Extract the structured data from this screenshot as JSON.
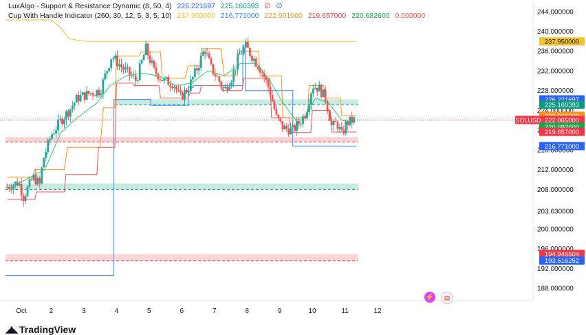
{
  "legend": {
    "line1": {
      "name": "LuxAlgo - Support & Resistance Dynamic (8, 50, 4)",
      "v1": "226.221697",
      "v2": "225.160393",
      "v3": "∅",
      "v4": "∅"
    },
    "line2": {
      "name": "Cup With Handle Indicator (260, 30, 12, 5, 3, 5, 10)",
      "v1": "237.950000",
      "v2": "216.771000",
      "v3": "222.901000",
      "v4": "219.657000",
      "v5": "220.682600",
      "v6": "0.000000"
    }
  },
  "brand": {
    "logo_text": "TradingView",
    "logo_mark": "◢◣"
  },
  "icons": [
    "flash-icon",
    "us-flag-icon"
  ],
  "colors": {
    "up": "#26a69a",
    "down": "#ef5350",
    "ma": "#2ec86b",
    "yellow": "#f2c230",
    "blue": "#2f8cff",
    "orange": "#f7931a",
    "red": "#f0524f",
    "green": "#16a34a"
  },
  "chart_data": {
    "type": "candlestick",
    "symbol": "SOLUSD",
    "x_ticks": [
      "Oct",
      "2",
      "3",
      "4",
      "5",
      "6",
      "7",
      "8",
      "9",
      "10",
      "11",
      "12"
    ],
    "y_ticks": [
      188.0,
      192.0,
      196.0,
      200.0,
      203.63,
      208.0,
      212.0,
      216.0,
      220.0,
      224.0,
      228.0,
      232.0,
      236.0,
      240.0,
      244.0
    ],
    "y_tick_labels": [
      "188.000000",
      "192.000000",
      "196.000000",
      "200.000000",
      "203.630000",
      "208.000000",
      "212.000000",
      "216.000000",
      "220.000000",
      "224.000000",
      "228.000000",
      "232.000000",
      "236.000000",
      "240.000000",
      "244.000000"
    ],
    "ylim": [
      185.5,
      245.5
    ],
    "xlim": [
      -0.4,
      12.6
    ],
    "price_tags": [
      {
        "label": "226.221697",
        "value": 226.221697,
        "color": "#2962ff"
      },
      {
        "label": "225.160393",
        "value": 225.160393,
        "color": "#089981"
      },
      {
        "label": "222.901000",
        "value": 222.901,
        "color": "#f7931a"
      },
      {
        "label": "222.065000",
        "value": 222.065,
        "color": "#f23645",
        "symbol": "SOLUSD"
      },
      {
        "label": "220.682600",
        "value": 220.6826,
        "color": "#16a34a"
      },
      {
        "label": "219.657000",
        "value": 219.657,
        "color": "#f23645"
      },
      {
        "label": "216.771000",
        "value": 216.771,
        "color": "#2962ff"
      },
      {
        "label": "237.950000",
        "value": 237.95,
        "color": "#f2c230"
      },
      {
        "label": "194.945504",
        "value": 194.945504,
        "color": "#f23645"
      },
      {
        "label": "193.616252",
        "value": 193.616252,
        "color": "#2962ff"
      }
    ],
    "zones": [
      {
        "kind": "support",
        "y1": 225.16,
        "y2": 226.22,
        "x1": 2.95,
        "x2": 10.4,
        "color": "#089981"
      },
      {
        "kind": "resistance",
        "y1": 217.6,
        "y2": 218.6,
        "x1": -0.4,
        "x2": 10.4,
        "color": "#f23645"
      },
      {
        "kind": "support",
        "y1": 208.0,
        "y2": 209.2,
        "x1": -0.4,
        "x2": 10.4,
        "color": "#089981"
      },
      {
        "kind": "resistance",
        "y1": 193.6,
        "y2": 194.9,
        "x1": -0.4,
        "x2": 10.4,
        "color": "#f23645"
      }
    ],
    "blue_line": [
      [
        -0.4,
        190.6
      ],
      [
        2.92,
        190.6
      ],
      [
        2.92,
        226.2
      ],
      [
        4.0,
        226.2
      ],
      [
        4.05,
        226.2
      ],
      [
        4.05,
        225.0
      ],
      [
        5.15,
        225.0
      ],
      [
        5.2,
        225.0
      ],
      [
        5.2,
        228.6
      ],
      [
        5.35,
        228.6
      ],
      [
        5.35,
        229.0
      ],
      [
        6.85,
        229.0
      ],
      [
        6.87,
        229.0
      ],
      [
        6.87,
        237.2
      ],
      [
        6.95,
        237.2
      ],
      [
        6.95,
        228.0
      ],
      [
        8.35,
        228.0
      ],
      [
        8.4,
        228.0
      ],
      [
        8.4,
        216.8
      ],
      [
        9.9,
        216.8
      ],
      [
        9.95,
        216.8
      ],
      [
        9.95,
        216.77
      ],
      [
        10.35,
        216.77
      ]
    ],
    "yellow_line": [
      [
        -0.4,
        242.3
      ],
      [
        1.0,
        242.3
      ],
      [
        1.25,
        241.0
      ],
      [
        1.55,
        238.5
      ],
      [
        2.0,
        238.0
      ],
      [
        2.4,
        237.95
      ],
      [
        10.35,
        237.95
      ]
    ],
    "candles_seed": 7,
    "candle_path": [
      [
        -0.35,
        208.5
      ],
      [
        0.0,
        209.5
      ],
      [
        0.15,
        206.5
      ],
      [
        0.45,
        210.5
      ],
      [
        0.65,
        209.0
      ],
      [
        0.75,
        214.0
      ],
      [
        1.0,
        219.0
      ],
      [
        1.3,
        222.0
      ],
      [
        1.55,
        224.0
      ],
      [
        1.8,
        226.5
      ],
      [
        2.2,
        227.5
      ],
      [
        2.5,
        228.0
      ],
      [
        2.7,
        232.0
      ],
      [
        2.85,
        235.0
      ],
      [
        3.2,
        232.5
      ],
      [
        3.6,
        230.0
      ],
      [
        3.9,
        236.5
      ],
      [
        4.15,
        232.0
      ],
      [
        4.45,
        230.0
      ],
      [
        4.75,
        229.5
      ],
      [
        4.95,
        226.5
      ],
      [
        5.2,
        228.5
      ],
      [
        5.5,
        233.0
      ],
      [
        5.7,
        236.5
      ],
      [
        5.9,
        232.5
      ],
      [
        6.1,
        230.5
      ],
      [
        6.3,
        228.0
      ],
      [
        6.55,
        231.0
      ],
      [
        6.75,
        235.0
      ],
      [
        6.95,
        237.0
      ],
      [
        7.2,
        234.5
      ],
      [
        7.45,
        232.0
      ],
      [
        7.7,
        228.0
      ],
      [
        7.9,
        222.5
      ],
      [
        8.1,
        220.5
      ],
      [
        8.4,
        220.0
      ],
      [
        8.6,
        221.5
      ],
      [
        8.8,
        223.5
      ],
      [
        9.0,
        229.0
      ],
      [
        9.2,
        228.5
      ],
      [
        9.4,
        226.5
      ],
      [
        9.6,
        220.5
      ],
      [
        9.75,
        221.5
      ],
      [
        9.9,
        219.0
      ],
      [
        10.05,
        221.5
      ],
      [
        10.3,
        222.1
      ]
    ],
    "ma_line": [
      [
        -0.35,
        208.0
      ],
      [
        0.8,
        212.0
      ],
      [
        1.3,
        219.5
      ],
      [
        1.8,
        222.5
      ],
      [
        2.4,
        225.5
      ],
      [
        2.8,
        229.0
      ],
      [
        3.3,
        231.0
      ],
      [
        3.8,
        231.5
      ],
      [
        4.3,
        231.0
      ],
      [
        4.8,
        229.0
      ],
      [
        5.3,
        229.5
      ],
      [
        5.8,
        232.0
      ],
      [
        6.3,
        231.0
      ],
      [
        6.8,
        233.5
      ],
      [
        7.3,
        233.5
      ],
      [
        7.7,
        230.0
      ],
      [
        8.1,
        225.5
      ],
      [
        8.5,
        222.0
      ],
      [
        8.8,
        223.0
      ],
      [
        9.1,
        226.5
      ],
      [
        9.5,
        225.5
      ],
      [
        9.9,
        222.0
      ],
      [
        10.3,
        221.5
      ]
    ],
    "orange_line": [
      [
        -0.35,
        210.5
      ],
      [
        0.45,
        210.5
      ],
      [
        0.5,
        212.0
      ],
      [
        1.4,
        212.0
      ],
      [
        1.5,
        216.5
      ],
      [
        2.5,
        216.5
      ],
      [
        2.6,
        224.5
      ],
      [
        2.95,
        224.5
      ],
      [
        3.0,
        235.0
      ],
      [
        3.7,
        235.0
      ],
      [
        3.75,
        235.8
      ],
      [
        4.35,
        235.8
      ],
      [
        4.4,
        230.5
      ],
      [
        5.1,
        230.5
      ],
      [
        5.2,
        233.0
      ],
      [
        5.55,
        233.0
      ],
      [
        5.6,
        236.5
      ],
      [
        6.2,
        236.5
      ],
      [
        6.3,
        231.0
      ],
      [
        6.7,
        231.0
      ],
      [
        6.75,
        236.0
      ],
      [
        7.35,
        236.0
      ],
      [
        7.4,
        231.0
      ],
      [
        8.05,
        231.0
      ],
      [
        8.1,
        222.5
      ],
      [
        8.85,
        222.5
      ],
      [
        8.9,
        229.0
      ],
      [
        9.35,
        229.0
      ],
      [
        9.4,
        226.5
      ],
      [
        9.85,
        226.5
      ],
      [
        9.9,
        222.9
      ],
      [
        10.35,
        222.9
      ]
    ],
    "red_line": [
      [
        -0.35,
        206.0
      ],
      [
        0.5,
        206.0
      ],
      [
        0.55,
        207.5
      ],
      [
        1.4,
        207.5
      ],
      [
        1.45,
        211.0
      ],
      [
        2.4,
        211.0
      ],
      [
        2.45,
        216.5
      ],
      [
        2.95,
        216.5
      ],
      [
        3.0,
        229.5
      ],
      [
        3.5,
        229.5
      ],
      [
        3.55,
        229.0
      ],
      [
        4.3,
        229.0
      ],
      [
        4.35,
        226.5
      ],
      [
        5.2,
        226.5
      ],
      [
        5.25,
        227.5
      ],
      [
        5.55,
        227.5
      ],
      [
        5.6,
        229.0
      ],
      [
        6.2,
        229.0
      ],
      [
        6.25,
        228.0
      ],
      [
        6.85,
        228.0
      ],
      [
        6.9,
        230.5
      ],
      [
        7.7,
        230.5
      ],
      [
        7.75,
        222.5
      ],
      [
        8.3,
        222.5
      ],
      [
        8.35,
        219.5
      ],
      [
        8.95,
        219.5
      ],
      [
        9.0,
        224.0
      ],
      [
        9.55,
        224.0
      ],
      [
        9.6,
        219.6
      ],
      [
        10.35,
        219.6
      ]
    ]
  }
}
